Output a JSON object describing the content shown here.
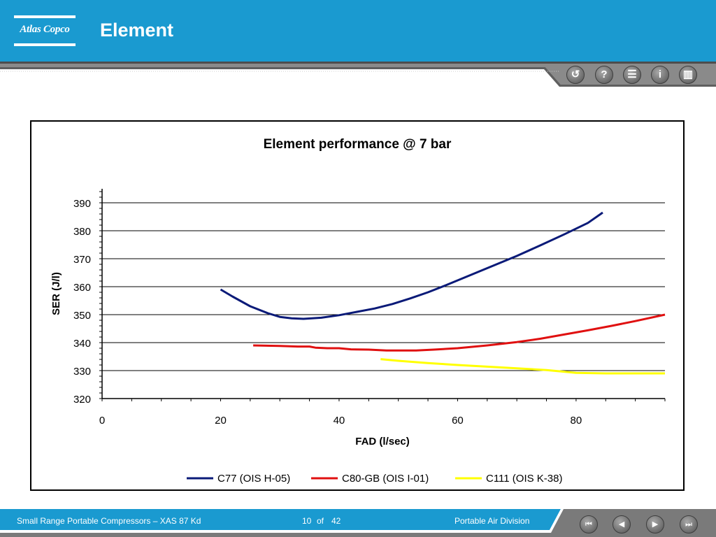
{
  "header": {
    "logo_text": "Atlas Copco",
    "title": "Element",
    "background": "#1a9ad0"
  },
  "toolbar": {
    "buttons": [
      {
        "name": "back-icon",
        "glyph": "↺"
      },
      {
        "name": "help-icon",
        "glyph": "?"
      },
      {
        "name": "menu-icon",
        "glyph": "☰"
      },
      {
        "name": "info-icon",
        "glyph": "i"
      },
      {
        "name": "book-icon",
        "glyph": "▥"
      }
    ]
  },
  "chart_data": {
    "type": "line",
    "title": "Element performance @ 7 bar",
    "xlabel": "FAD (l/sec)",
    "ylabel": "SER (J/l)",
    "xlim": [
      0,
      95
    ],
    "ylim": [
      320,
      395
    ],
    "x_ticks": [
      0,
      20,
      40,
      60,
      80
    ],
    "y_ticks": [
      320,
      330,
      340,
      350,
      360,
      370,
      380,
      390
    ],
    "grid": "horizontal",
    "legend_position": "bottom",
    "series": [
      {
        "name": "C77 (OIS H-05)",
        "color": "#0a1a78",
        "x": [
          20,
          22,
          25,
          28,
          30,
          32,
          34,
          37,
          40,
          43,
          46,
          49,
          52,
          55,
          58,
          62,
          66,
          70,
          74,
          78,
          82,
          84.5
        ],
        "y": [
          359,
          356.5,
          353,
          350.5,
          349.2,
          348.7,
          348.5,
          348.9,
          349.8,
          351,
          352.2,
          353.8,
          355.8,
          358,
          360.5,
          364,
          367.5,
          371,
          374.8,
          378.7,
          382.8,
          386.5
        ]
      },
      {
        "name": "C80-GB (OIS I-01)",
        "color": "#e01010",
        "x": [
          25.5,
          30,
          33,
          35,
          36,
          38,
          40,
          42,
          45,
          48,
          50,
          53,
          56,
          60,
          65,
          70,
          74,
          78,
          82,
          86,
          90,
          95
        ],
        "y": [
          339,
          338.8,
          338.6,
          338.6,
          338.2,
          338,
          338,
          337.6,
          337.5,
          337.2,
          337.2,
          337.2,
          337.5,
          338,
          339,
          340.2,
          341.4,
          342.9,
          344.4,
          346,
          347.7,
          350
        ]
      },
      {
        "name": "C111 (OIS K-38)",
        "color": "#ffff00",
        "x": [
          47,
          50,
          55,
          60,
          65,
          70,
          75,
          78,
          80,
          85,
          90,
          95
        ],
        "y": [
          334.1,
          333.5,
          332.7,
          332,
          331.4,
          330.8,
          330.2,
          329.6,
          329.2,
          329,
          329,
          329
        ]
      }
    ]
  },
  "footer": {
    "left_text": "Small Range Portable Compressors – XAS 87 Kd",
    "page_current": "10",
    "page_of": "of",
    "page_total": "42",
    "right_text": "Portable Air Division",
    "nav": [
      {
        "name": "first-page-icon",
        "glyph": "⏮"
      },
      {
        "name": "previous-page-icon",
        "glyph": "◀"
      },
      {
        "name": "next-page-icon",
        "glyph": "▶"
      },
      {
        "name": "last-page-icon",
        "glyph": "⏭"
      }
    ]
  }
}
